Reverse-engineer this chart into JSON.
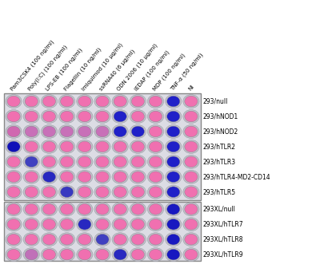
{
  "col_labels": [
    "Pam3CSK4 (100 ng/ml)",
    "Poly(I:C) (100 ng/ml)",
    "LPS-EB (100 ng/ml)",
    "Flagellin (10 ng/ml)",
    "Imiquimod (10 μg/ml)",
    "ssRNA40 (6 μg/ml)",
    "ODN 2006 (10 μg/ml)",
    "iEDAP (100 ng/ml)",
    "MDP (100 ng/ml)",
    "TNF-α (50 ng/ml)",
    "NI"
  ],
  "row_labels": [
    "293/null",
    "293/hNOD1",
    "293/hNOD2",
    "293/hTLR2",
    "293/hTLR3",
    "293/hTLR4-MD2-CD14",
    "293/hTLR5",
    "293XL/null",
    "293XL/hTLR7",
    "293XL/hTLR8",
    "293XL/hTLR9"
  ],
  "well_colors": [
    [
      "#F070B0",
      "#F070B0",
      "#F070B0",
      "#F070B0",
      "#F070B0",
      "#F070B0",
      "#F070B0",
      "#F070B0",
      "#F070B0",
      "#2020C8",
      "#F070B0"
    ],
    [
      "#F070B0",
      "#F070B0",
      "#F070B0",
      "#F070B0",
      "#F070B0",
      "#F070B0",
      "#2020C8",
      "#F070B0",
      "#F070B0",
      "#2020C8",
      "#F070B0"
    ],
    [
      "#D068B0",
      "#C870B8",
      "#C870B8",
      "#C870B8",
      "#C870B8",
      "#C870B8",
      "#2020C8",
      "#2020C8",
      "#F070B0",
      "#2020C8",
      "#F070B0"
    ],
    [
      "#1010B8",
      "#F070B0",
      "#F070B0",
      "#F070B0",
      "#F070B0",
      "#F070B0",
      "#F070B0",
      "#F070B0",
      "#F070B0",
      "#2020C8",
      "#F070B0"
    ],
    [
      "#F070B0",
      "#4040C0",
      "#F070B0",
      "#F070B0",
      "#F070B0",
      "#F070B0",
      "#F070B0",
      "#F070B0",
      "#F070B0",
      "#2020C8",
      "#F070B0"
    ],
    [
      "#F070B0",
      "#F070B0",
      "#2828C0",
      "#F070B0",
      "#F070B0",
      "#F070B0",
      "#F070B0",
      "#F070B0",
      "#F070B0",
      "#2020C8",
      "#F070B0"
    ],
    [
      "#F070B0",
      "#F070B0",
      "#F070B0",
      "#3838C0",
      "#F070B0",
      "#F070B0",
      "#F070B0",
      "#F070B0",
      "#F070B0",
      "#2020C8",
      "#F070B0"
    ],
    [
      "#F070B0",
      "#F070B0",
      "#F070B0",
      "#F070B0",
      "#F070B0",
      "#F070B0",
      "#F070B0",
      "#F070B0",
      "#F070B0",
      "#1818C0",
      "#F070B0"
    ],
    [
      "#F070B0",
      "#F070B0",
      "#F070B0",
      "#F070B0",
      "#2828C0",
      "#F070B0",
      "#F070B0",
      "#F070B0",
      "#F070B0",
      "#1818C0",
      "#F070B0"
    ],
    [
      "#F070B0",
      "#F070B0",
      "#F070B0",
      "#F070B0",
      "#F070B0",
      "#4040C0",
      "#F070B0",
      "#F070B0",
      "#F070B0",
      "#1818C0",
      "#F070B0"
    ],
    [
      "#F070B0",
      "#C070B8",
      "#F070B0",
      "#F070B0",
      "#F070B0",
      "#F070B0",
      "#2828C0",
      "#F070B0",
      "#F070B0",
      "#1818C0",
      "#F070B0"
    ]
  ],
  "plate_bg": "#DCDCE4",
  "divider_after_row": 6,
  "fig_width": 4.0,
  "fig_height": 3.36,
  "dpi": 100,
  "label_fontsize": 5.0,
  "row_label_fontsize": 5.5
}
